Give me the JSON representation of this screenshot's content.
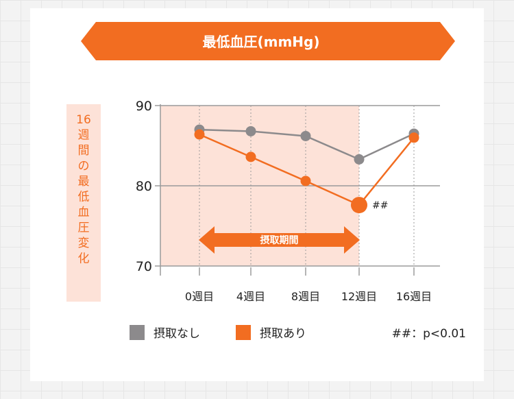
{
  "header": {
    "title": "最低血圧(mmHg)"
  },
  "ylabel_vertical": "16週間の最低血圧変化",
  "period_label": "摂取期間",
  "significance_marker": "##",
  "significance_note": "##：p<0.01",
  "legend": [
    {
      "label": "摂取なし",
      "color": "#8c8a8c"
    },
    {
      "label": "摂取あり",
      "color": "#f26d21"
    }
  ],
  "colors": {
    "accent": "#f26d21",
    "control": "#8c8a8c",
    "shade": "#fde2d8",
    "ylabel_bg": "#fde2d8"
  },
  "chart_data": {
    "type": "line",
    "title": "最低血圧(mmHg)",
    "ylabel": "16週間の最低血圧変化",
    "categories": [
      "0週目",
      "4週目",
      "8週目",
      "12週目",
      "16週目"
    ],
    "ylim": [
      70,
      90
    ],
    "yticks": [
      70,
      80,
      90
    ],
    "grid": true,
    "legend_position": "bottom",
    "shaded_period": [
      "0週目",
      "12週目"
    ],
    "series": [
      {
        "name": "摂取なし",
        "values": [
          87.0,
          86.8,
          86.2,
          83.3,
          86.5
        ]
      },
      {
        "name": "摂取あり",
        "values": [
          86.4,
          83.6,
          80.6,
          77.6,
          86.0
        ]
      }
    ]
  }
}
